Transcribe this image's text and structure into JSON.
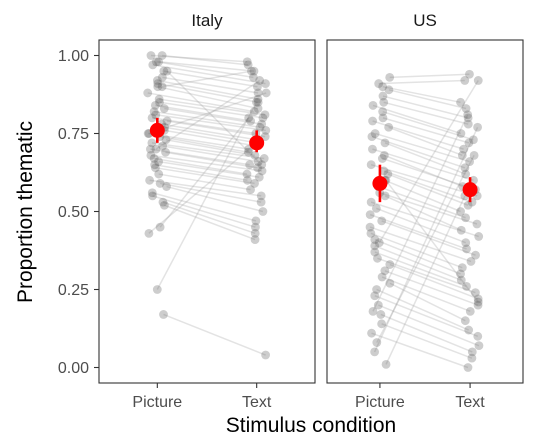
{
  "chart_data": {
    "type": "scatter",
    "xlabel": "Stimulus condition",
    "ylabel": "Proportion thematic",
    "ylim": [
      -0.03,
      1.05
    ],
    "yticks": [
      "0.00",
      "0.25",
      "0.50",
      "0.75",
      "1.00"
    ],
    "ytick_values": [
      0,
      0.25,
      0.5,
      0.75,
      1.0
    ],
    "categories": [
      "Picture",
      "Text"
    ],
    "colors": {
      "individual": "#5a5a5a",
      "mean": "#ff0000",
      "line": "#9a9a9a"
    },
    "panels": [
      {
        "title": "Italy",
        "mean": {
          "Picture": 0.76,
          "Text": 0.72
        },
        "ci": {
          "Picture": [
            0.72,
            0.8
          ],
          "Text": [
            0.69,
            0.76
          ]
        },
        "pairs": [
          [
            1.0,
            0.98
          ],
          [
            1.0,
            0.97
          ],
          [
            0.98,
            0.95
          ],
          [
            0.98,
            0.93
          ],
          [
            0.97,
            0.91
          ],
          [
            0.95,
            0.9
          ],
          [
            0.93,
            0.88
          ],
          [
            0.92,
            0.86
          ],
          [
            0.91,
            0.85
          ],
          [
            0.9,
            0.83
          ],
          [
            0.88,
            0.82
          ],
          [
            0.86,
            0.81
          ],
          [
            0.85,
            0.8
          ],
          [
            0.84,
            0.79
          ],
          [
            0.83,
            0.78
          ],
          [
            0.82,
            0.77
          ],
          [
            0.81,
            0.76
          ],
          [
            0.8,
            0.75
          ],
          [
            0.79,
            0.74
          ],
          [
            0.78,
            0.73
          ],
          [
            0.77,
            0.72
          ],
          [
            0.76,
            0.71
          ],
          [
            0.75,
            0.7
          ],
          [
            0.74,
            0.69
          ],
          [
            0.73,
            0.68
          ],
          [
            0.72,
            0.67
          ],
          [
            0.71,
            0.66
          ],
          [
            0.7,
            0.65
          ],
          [
            0.69,
            0.64
          ],
          [
            0.68,
            0.63
          ],
          [
            0.67,
            0.62
          ],
          [
            0.66,
            0.61
          ],
          [
            0.65,
            0.6
          ],
          [
            0.64,
            0.59
          ],
          [
            0.62,
            0.57
          ],
          [
            0.6,
            0.55
          ],
          [
            0.59,
            0.53
          ],
          [
            0.58,
            0.5
          ],
          [
            0.56,
            0.47
          ],
          [
            0.55,
            0.45
          ],
          [
            0.53,
            0.43
          ],
          [
            0.52,
            0.41
          ],
          [
            0.45,
            0.8
          ],
          [
            0.43,
            0.72
          ],
          [
            0.25,
            0.85
          ],
          [
            0.17,
            0.04
          ],
          [
            0.9,
            0.95
          ],
          [
            0.75,
            0.88
          ],
          [
            0.7,
            0.92
          ],
          [
            0.95,
            0.65
          ]
        ]
      },
      {
        "title": "US",
        "mean": {
          "Picture": 0.59,
          "Text": 0.57
        },
        "ci": {
          "Picture": [
            0.53,
            0.65
          ],
          "Text": [
            0.53,
            0.61
          ]
        },
        "pairs": [
          [
            0.93,
            0.94
          ],
          [
            0.91,
            0.92
          ],
          [
            0.9,
            0.85
          ],
          [
            0.89,
            0.83
          ],
          [
            0.87,
            0.8
          ],
          [
            0.85,
            0.78
          ],
          [
            0.84,
            0.75
          ],
          [
            0.82,
            0.73
          ],
          [
            0.8,
            0.72
          ],
          [
            0.79,
            0.7
          ],
          [
            0.77,
            0.68
          ],
          [
            0.75,
            0.66
          ],
          [
            0.74,
            0.64
          ],
          [
            0.72,
            0.62
          ],
          [
            0.7,
            0.6
          ],
          [
            0.68,
            0.58
          ],
          [
            0.67,
            0.57
          ],
          [
            0.65,
            0.55
          ],
          [
            0.63,
            0.53
          ],
          [
            0.62,
            0.52
          ],
          [
            0.6,
            0.5
          ],
          [
            0.58,
            0.48
          ],
          [
            0.56,
            0.46
          ],
          [
            0.55,
            0.44
          ],
          [
            0.53,
            0.42
          ],
          [
            0.51,
            0.4
          ],
          [
            0.49,
            0.38
          ],
          [
            0.47,
            0.36
          ],
          [
            0.45,
            0.34
          ],
          [
            0.43,
            0.32
          ],
          [
            0.41,
            0.3
          ],
          [
            0.39,
            0.28
          ],
          [
            0.37,
            0.26
          ],
          [
            0.35,
            0.24
          ],
          [
            0.33,
            0.22
          ],
          [
            0.31,
            0.2
          ],
          [
            0.29,
            0.18
          ],
          [
            0.27,
            0.15
          ],
          [
            0.25,
            0.12
          ],
          [
            0.23,
            0.1
          ],
          [
            0.2,
            0.07
          ],
          [
            0.17,
            0.05
          ],
          [
            0.14,
            0.03
          ],
          [
            0.11,
            0.0
          ],
          [
            0.08,
            0.68
          ],
          [
            0.05,
            0.77
          ],
          [
            0.01,
            0.55
          ],
          [
            0.18,
            0.81
          ],
          [
            0.4,
            0.92
          ],
          [
            0.6,
            0.21
          ]
        ]
      }
    ]
  }
}
